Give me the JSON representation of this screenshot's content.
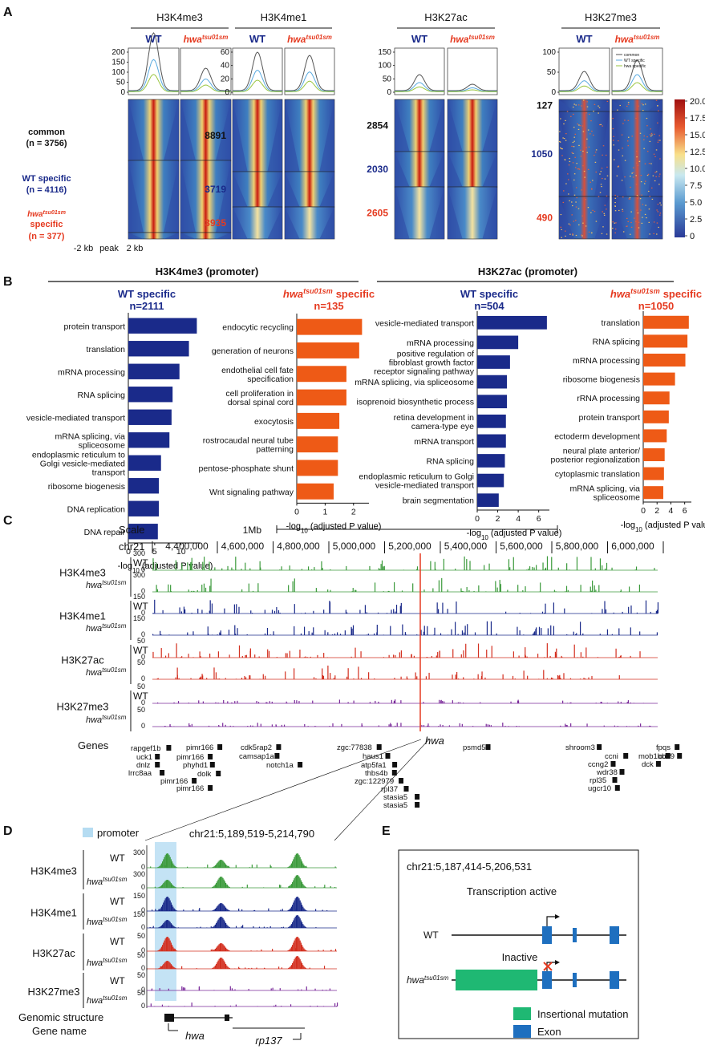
{
  "panels": {
    "A": "A",
    "B": "B",
    "C": "C",
    "D": "D",
    "E": "E"
  },
  "mutant_base": "hwa",
  "mutant_sup": "tsu01sm",
  "wt": "WT",
  "panelA": {
    "marks": [
      {
        "name": "H3K4me3",
        "yticks": [
          "200",
          "150",
          "100",
          "50",
          "0"
        ],
        "groups": [
          "",
          "",
          ""
        ]
      },
      {
        "name": "H3K4me1",
        "yticks": [
          "60",
          "40",
          "20",
          "0"
        ],
        "groups": [
          "8891",
          "3719",
          "3935"
        ]
      },
      {
        "name": "H3K27ac",
        "yticks": [
          "150",
          "100",
          "50",
          "0"
        ],
        "groups": [
          "2854",
          "2030",
          "2605"
        ]
      },
      {
        "name": "H3K27me3",
        "yticks": [
          "100",
          "50",
          "0"
        ],
        "groups": [
          "127",
          "1050",
          "490"
        ]
      }
    ],
    "row_common": "common",
    "row_common_n": "(n = 3756)",
    "row_wt": "WT specific",
    "row_wt_n": "(n = 4116)",
    "row_mut_specific": "specific",
    "row_mut_n": "(n = 377)",
    "xaxis": [
      "-2 kb",
      "peak",
      "2 kb"
    ],
    "legend": [
      "common",
      "WT specific",
      "hwa specific"
    ],
    "colorbar": [
      "20.0",
      "17.5",
      "15.0",
      "12.5",
      "10.0",
      "7.5",
      "5.0",
      "2.5",
      "0"
    ]
  },
  "chart_data": [
    {
      "type": "bar",
      "title": "H3K4me3 (promoter) — WT specific n=2111",
      "xlabel": "-log10 (adjusted P value)",
      "categories": [
        "protein transport",
        "translation",
        "mRNA processing",
        "RNA splicing",
        "vesicle-mediated transport",
        "mRNA splicing, via spliceosome",
        "endoplasmic reticulum to Golgi vesicle-mediated transport",
        "ribosome biogenesis",
        "DNA replication",
        "DNA repair"
      ],
      "values": [
        13,
        11.5,
        9.7,
        8.4,
        8.2,
        7.8,
        6.2,
        5.8,
        5.8,
        5.6
      ],
      "xlim": [
        0,
        14
      ],
      "xticks": [
        "0",
        "5",
        "10"
      ],
      "color": "#1a2a8a"
    },
    {
      "type": "bar",
      "title": "H3K4me3 (promoter) — hwa specific n=135",
      "xlabel": "-log10 (adjusted P value)",
      "categories": [
        "endocytic recycling",
        "generation of neurons",
        "endothelial cell fate specification",
        "cell proliferation in dorsal spinal cord",
        "exocytosis",
        "rostrocaudal neural tube patterning",
        "pentose-phosphate shunt",
        "Wnt signaling pathway"
      ],
      "values": [
        2.3,
        2.2,
        1.75,
        1.75,
        1.5,
        1.45,
        1.45,
        1.3
      ],
      "xlim": [
        0,
        2.6
      ],
      "xticks": [
        "0",
        "1",
        "2"
      ],
      "color": "#ee5a16"
    },
    {
      "type": "bar",
      "title": "H3K27ac (promoter) — WT specific n=504",
      "xlabel": "-log10 (adjusted P value)",
      "categories": [
        "vesicle-mediated transport",
        "mRNA processing",
        "positive regulation of fibroblast growth factor receptor signaling pathway",
        "mRNA splicing, via spliceosome",
        "isoprenoid biosynthetic process",
        "retina development in camera-type eye",
        "mRNA transport",
        "RNA splicing",
        "endoplasmic reticulum to Golgi vesicle-mediated transport",
        "brain segmentation"
      ],
      "values": [
        6.8,
        4.0,
        3.2,
        2.9,
        2.9,
        2.8,
        2.8,
        2.7,
        2.6,
        2.1
      ],
      "xlim": [
        0,
        7.2
      ],
      "xticks": [
        "0",
        "2",
        "4",
        "6"
      ],
      "color": "#1a2a8a"
    },
    {
      "type": "bar",
      "title": "H3K27ac (promoter) — hwa specific n=1050",
      "xlabel": "-log10 (adjusted P value)",
      "categories": [
        "translation",
        "RNA splicing",
        "mRNA processing",
        "ribosome biogenesis",
        "rRNA processing",
        "protein transport",
        "ectoderm development",
        "neural plate anterior/ posterior regionalization",
        "cytoplasmic translation",
        "mRNA splicing, via spliceosome"
      ],
      "values": [
        6.6,
        6.4,
        6.1,
        4.6,
        3.8,
        3.7,
        3.4,
        3.1,
        3.0,
        2.9
      ],
      "xlim": [
        0,
        7.2
      ],
      "xticks": [
        "0",
        "2",
        "4",
        "6"
      ],
      "color": "#ee5a16"
    }
  ],
  "panelB": {
    "header_left": "H3K4me3 (promoter)",
    "header_right": "H3K27ac (promoter)",
    "titles": [
      {
        "label": "WT specific",
        "n": "n=2111"
      },
      {
        "label": "specific",
        "n": "n=135"
      },
      {
        "label": "WT specific",
        "n": "n=504"
      },
      {
        "label": "specific",
        "n": "n=1050"
      }
    ],
    "xlabel": "-log",
    "xlabel_sub": "10",
    "xlabel_rest": " (adjusted P value)"
  },
  "panelC": {
    "scale_label": "Scale",
    "chr_label": "chr21",
    "mb_label": "1Mb",
    "coords": [
      "4,400,000",
      "4,600,000",
      "4,800,000",
      "5,000,000",
      "5,200,000",
      "5,400,000",
      "5,600,000",
      "5,800,000",
      "6,000,000"
    ],
    "tracks": [
      {
        "mark": "H3K4me3",
        "scale": "300",
        "zero": "0",
        "color": "#3b9a3b"
      },
      {
        "mark": "H3K4me1",
        "scale": "150",
        "zero": "0",
        "color": "#1a2a8a"
      },
      {
        "mark": "H3K27ac",
        "scale": "50",
        "zero": "0",
        "color": "#d32f1f"
      },
      {
        "mark": "H3K27me3",
        "scale": "50",
        "zero": "0",
        "color": "#7a2a9a"
      }
    ],
    "genes_label": "Genes",
    "hwa_label": "hwa",
    "genes": [
      "rapgef1b",
      "uck1",
      "dnlz",
      "lrrc8aa",
      "pimr166",
      "pimr166",
      "pimr166",
      "phyhd1",
      "dolk",
      "pimr166",
      "cdk5rap2",
      "camsap1a",
      "notch1a",
      "zgc:77838",
      "haus1",
      "atp5fa1",
      "thbs4b",
      "zgc:122979",
      "rpl37",
      "stasia5",
      "stasia5",
      "psmd5",
      "shroom3",
      "ccni",
      "ccng2",
      "wdr38",
      "rpl35",
      "ugcr10",
      "mob1bb",
      "dck",
      "fpqs",
      "cdk9"
    ]
  },
  "panelD": {
    "promoter_label": "promoter",
    "region": "chr21:5,189,519-5,214,790",
    "tracks": [
      {
        "mark": "H3K4me3",
        "s1": "300",
        "s2": "300",
        "color": "#3b9a3b"
      },
      {
        "mark": "H3K4me1",
        "s1": "150",
        "s2": "150",
        "color": "#1a2a8a"
      },
      {
        "mark": "H3K27ac",
        "s1": "50",
        "s2": "50",
        "color": "#d32f1f"
      },
      {
        "mark": "H3K27me3",
        "s1": "50",
        "s2": "50",
        "color": "#7a2a9a"
      }
    ],
    "genomic_structure": "Genomic structure",
    "gene_name": "Gene name",
    "gene_hwa": "hwa",
    "gene_rpl": "rp137",
    "zero": "0"
  },
  "panelE": {
    "region": "chr21:5,187,414-5,206,531",
    "active": "Transcription active",
    "inactive": "Inactive",
    "legend_insert": "Insertional mutation",
    "legend_exon": "Exon",
    "insert_color": "#1fb873",
    "exon_color": "#1e6fbf"
  },
  "colors": {
    "wt": "#1a2a8a",
    "mut": "#e53a20",
    "orange": "#ee5a16"
  }
}
